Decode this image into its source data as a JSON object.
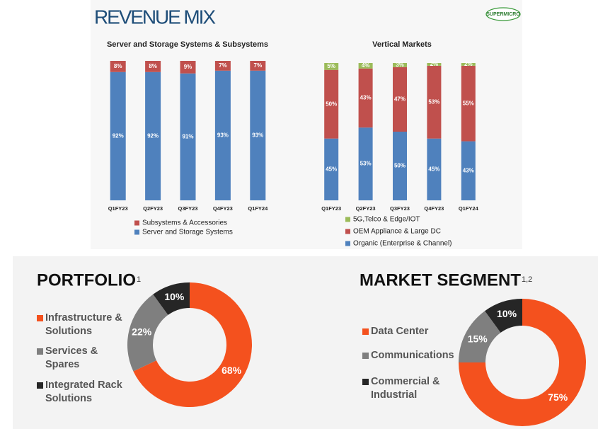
{
  "header": {
    "title": "REVENUE MIX",
    "logo": "SUPERMICRO"
  },
  "chart_data": [
    {
      "type": "stacked_bar",
      "title": "Server and Storage Systems & Subsystems",
      "categories": [
        "Q1FY23",
        "Q2FY23",
        "Q3FY23",
        "Q4FY23",
        "Q1FY24"
      ],
      "ylim": [
        0,
        100
      ],
      "series": [
        {
          "name": "Server and Storage Systems",
          "color": "#4f81bd",
          "values": [
            92,
            92,
            91,
            93,
            93
          ],
          "value_labels": [
            "92%",
            "92%",
            "91%",
            "93%",
            "93%"
          ]
        },
        {
          "name": "Subsystems & Accessories",
          "color": "#c0504d",
          "values": [
            8,
            8,
            9,
            7,
            7
          ],
          "value_labels": [
            "8%",
            "8%",
            "9%",
            "7%",
            "7%"
          ]
        }
      ]
    },
    {
      "type": "stacked_bar",
      "title": "Vertical Markets",
      "categories": [
        "Q1FY23",
        "Q2FY23",
        "Q3FY23",
        "Q4FY23",
        "Q1FY24"
      ],
      "ylim": [
        0,
        100
      ],
      "series": [
        {
          "name": "Organic (Enterprise & Channel)",
          "color": "#4f81bd",
          "values": [
            45,
            53,
            50,
            45,
            43
          ],
          "value_labels": [
            "45%",
            "53%",
            "50%",
            "45%",
            "43%"
          ]
        },
        {
          "name": "OEM Appliance & Large DC",
          "color": "#c0504d",
          "values": [
            50,
            43,
            47,
            53,
            55
          ],
          "value_labels": [
            "50%",
            "43%",
            "47%",
            "53%",
            "55%"
          ]
        },
        {
          "name": "5G,Telco & Edge/IOT",
          "color": "#9bbb59",
          "values": [
            5,
            4,
            3,
            2,
            2
          ],
          "value_labels": [
            "5%",
            "4%",
            "3%",
            "2%",
            "2%"
          ]
        }
      ]
    },
    {
      "type": "donut",
      "title": "PORTFOLIO",
      "title_note": "1",
      "categories": [
        "Infrastructure & Solutions",
        "Services & Spares",
        "Integrated Rack Solutions"
      ],
      "values": [
        68,
        22,
        10
      ],
      "value_labels": [
        "68%",
        "22%",
        "10%"
      ],
      "colors": [
        "#f4511e",
        "#7f7f7f",
        "#262626"
      ]
    },
    {
      "type": "donut",
      "title": "MARKET SEGMENT",
      "title_note": "1,2",
      "categories": [
        "Data Center",
        "Communications",
        "Commercial & Industrial"
      ],
      "values": [
        75,
        15,
        10
      ],
      "value_labels": [
        "75%",
        "15%",
        "10%"
      ],
      "colors": [
        "#f4511e",
        "#7f7f7f",
        "#262626"
      ]
    }
  ]
}
